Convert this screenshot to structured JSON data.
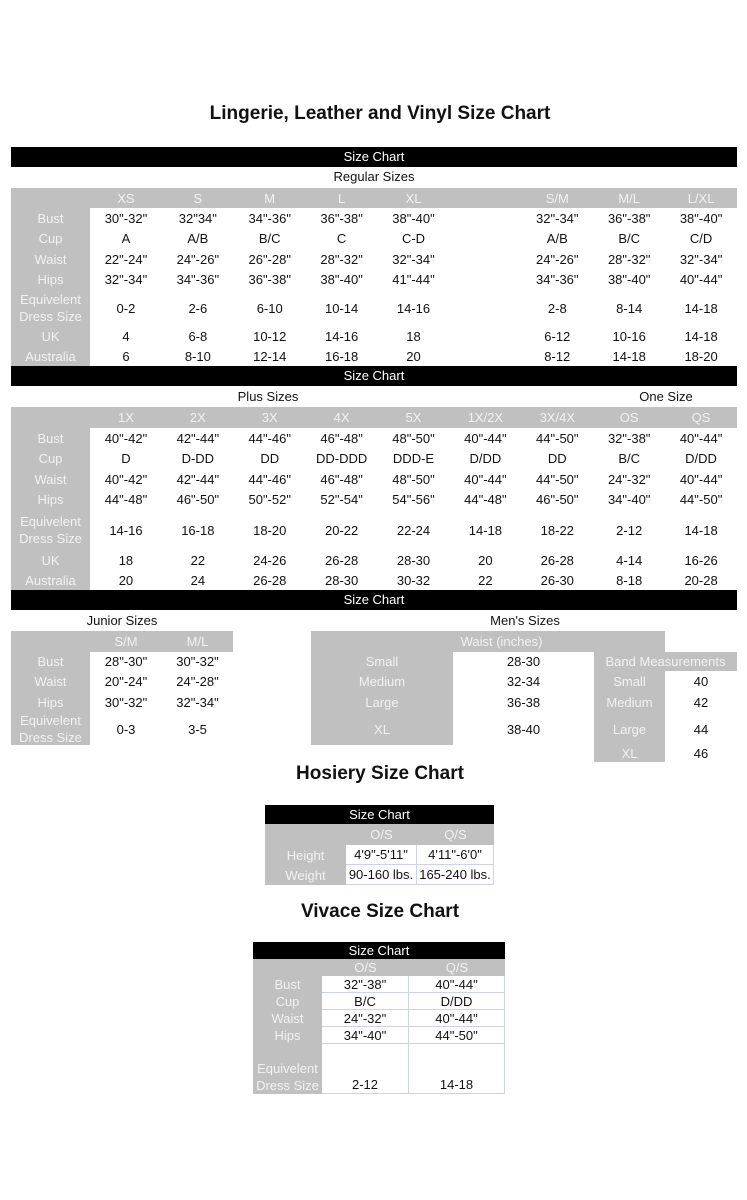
{
  "title": "Lingerie, Leather and Vinyl Size Chart",
  "bar_label": "Size Chart",
  "regular": {
    "label": "Regular Sizes",
    "columns": [
      "XS",
      "S",
      "M",
      "L",
      "XL",
      "",
      "S/M",
      "M/L",
      "L/XL"
    ],
    "rows": [
      {
        "label": "Bust",
        "values": [
          "30\"-32\"",
          "32\"34\"",
          "34\"-36\"",
          "36\"-38\"",
          "38\"-40\"",
          "",
          "32\"-34\"",
          "36\"-38\"",
          "38\"-40\""
        ]
      },
      {
        "label": "Cup",
        "values": [
          "A",
          "A/B",
          "B/C",
          "C",
          "C-D",
          "",
          "A/B",
          "B/C",
          "C/D"
        ]
      },
      {
        "label": "Waist",
        "values": [
          "22\"-24\"",
          "24\"-26\"",
          "26\"-28\"",
          "28\"-32\"",
          "32\"-34\"",
          "",
          "24\"-26\"",
          "28\"-32\"",
          "32\"-34\""
        ]
      },
      {
        "label": "Hips",
        "values": [
          "32\"-34\"",
          "34\"-36\"",
          "36\"-38\"",
          "38\"-40\"",
          "41\"-44\"",
          "",
          "34\"-36\"",
          "38\"-40\"",
          "40\"-44\""
        ]
      },
      {
        "label": "Equivelent Dress Size",
        "values": [
          "0-2",
          "2-6",
          "6-10",
          "10-14",
          "14-16",
          "",
          "2-8",
          "8-14",
          "14-18"
        ]
      },
      {
        "label": "UK",
        "values": [
          "4",
          "6-8",
          "10-12",
          "14-16",
          "18",
          "",
          "6-12",
          "10-16",
          "14-18"
        ]
      },
      {
        "label": "Australia",
        "values": [
          "6",
          "8-10",
          "12-14",
          "16-18",
          "20",
          "",
          "8-12",
          "14-18",
          "18-20"
        ]
      }
    ]
  },
  "plus": {
    "label": "Plus Sizes",
    "one_size_label": "One Size",
    "columns": [
      "1X",
      "2X",
      "3X",
      "4X",
      "5X",
      "1X/2X",
      "3X/4X",
      "OS",
      "QS"
    ],
    "rows": [
      {
        "label": "Bust",
        "values": [
          "40\"-42\"",
          "42\"-44\"",
          "44\"-46\"",
          "46\"-48\"",
          "48\"-50\"",
          "40\"-44\"",
          "44\"-50\"",
          "32\"-38\"",
          "40\"-44\""
        ]
      },
      {
        "label": "Cup",
        "values": [
          "D",
          "D-DD",
          "DD",
          "DD-DDD",
          "DDD-E",
          "D/DD",
          "DD",
          "B/C",
          "D/DD"
        ]
      },
      {
        "label": "Waist",
        "values": [
          "40\"-42\"",
          "42\"-44\"",
          "44\"-46\"",
          "46\"-48\"",
          "48\"-50\"",
          "40\"-44\"",
          "44\"-50\"",
          "24\"-32\"",
          "40\"-44\""
        ]
      },
      {
        "label": "Hips",
        "values": [
          "44\"-48\"",
          "46\"-50\"",
          "50\"-52\"",
          "52\"-54\"",
          "54\"-56\"",
          "44\"-48\"",
          "46\"-50\"",
          "34\"-40\"",
          "44\"-50\""
        ]
      },
      {
        "label": "Equivelent Dress Size",
        "values": [
          "14-16",
          "16-18",
          "18-20",
          "20-22",
          "22-24",
          "14-18",
          "18-22",
          "2-12",
          "14-18"
        ]
      },
      {
        "label": "UK",
        "values": [
          "18",
          "22",
          "24-26",
          "26-28",
          "28-30",
          "20",
          "26-28",
          "4-14",
          "16-26"
        ]
      },
      {
        "label": "Australia",
        "values": [
          "20",
          "24",
          "26-28",
          "28-30",
          "30-32",
          "22",
          "26-30",
          "8-18",
          "20-28"
        ]
      }
    ]
  },
  "junior": {
    "label": "Junior Sizes",
    "columns": [
      "S/M",
      "M/L"
    ],
    "rows": [
      {
        "label": "Bust",
        "values": [
          "28\"-30\"",
          "30\"-32\""
        ]
      },
      {
        "label": "Waist",
        "values": [
          "20\"-24\"",
          "24\"-28\""
        ]
      },
      {
        "label": "Hips",
        "values": [
          "30\"-32\"",
          "32\"-34\""
        ]
      },
      {
        "label": "Equivelent Dress Size",
        "values": [
          "0-3",
          "3-5"
        ]
      }
    ]
  },
  "mens": {
    "label": "Men's Sizes",
    "waist": {
      "columns": [
        "Waist (inches)"
      ],
      "rows": [
        {
          "label": "Small",
          "values": [
            "28-30"
          ]
        },
        {
          "label": "Medium",
          "values": [
            "32-34"
          ]
        },
        {
          "label": "Large",
          "values": [
            "36-38"
          ]
        },
        {
          "label": "XL",
          "values": [
            "38-40"
          ]
        }
      ]
    },
    "band": {
      "columns": [
        "Band Measurements"
      ],
      "rows": [
        {
          "label": "Small",
          "values": [
            "40"
          ]
        },
        {
          "label": "Medium",
          "values": [
            "42"
          ]
        },
        {
          "label": "Large",
          "values": [
            "44"
          ]
        },
        {
          "label": "XL",
          "values": [
            "46"
          ]
        }
      ]
    }
  },
  "hosiery": {
    "title": "Hosiery Size Chart",
    "bar_label": "Size Chart",
    "columns": [
      "O/S",
      "Q/S"
    ],
    "rows": [
      {
        "label": "Height",
        "values": [
          "4'9\"-5'11\"",
          "4'11\"-6'0\""
        ]
      },
      {
        "label": "Weight",
        "values": [
          "90-160 lbs.",
          "165-240 lbs."
        ]
      }
    ]
  },
  "vivace": {
    "title": "Vivace Size Chart",
    "bar_label": "Size Chart",
    "columns": [
      "O/S",
      "Q/S"
    ],
    "rows": [
      {
        "label": "Bust",
        "values": [
          "32\"-38\"",
          "40\"-44\""
        ]
      },
      {
        "label": "Cup",
        "values": [
          "B/C",
          "D/DD"
        ]
      },
      {
        "label": "Waist",
        "values": [
          "24\"-32\"",
          "40\"-44\""
        ]
      },
      {
        "label": "Hips",
        "values": [
          "34\"-40\"",
          "44\"-50\""
        ]
      },
      {
        "label": "Equivelent Dress Size",
        "values": [
          "2-12",
          "14-18"
        ]
      }
    ]
  }
}
